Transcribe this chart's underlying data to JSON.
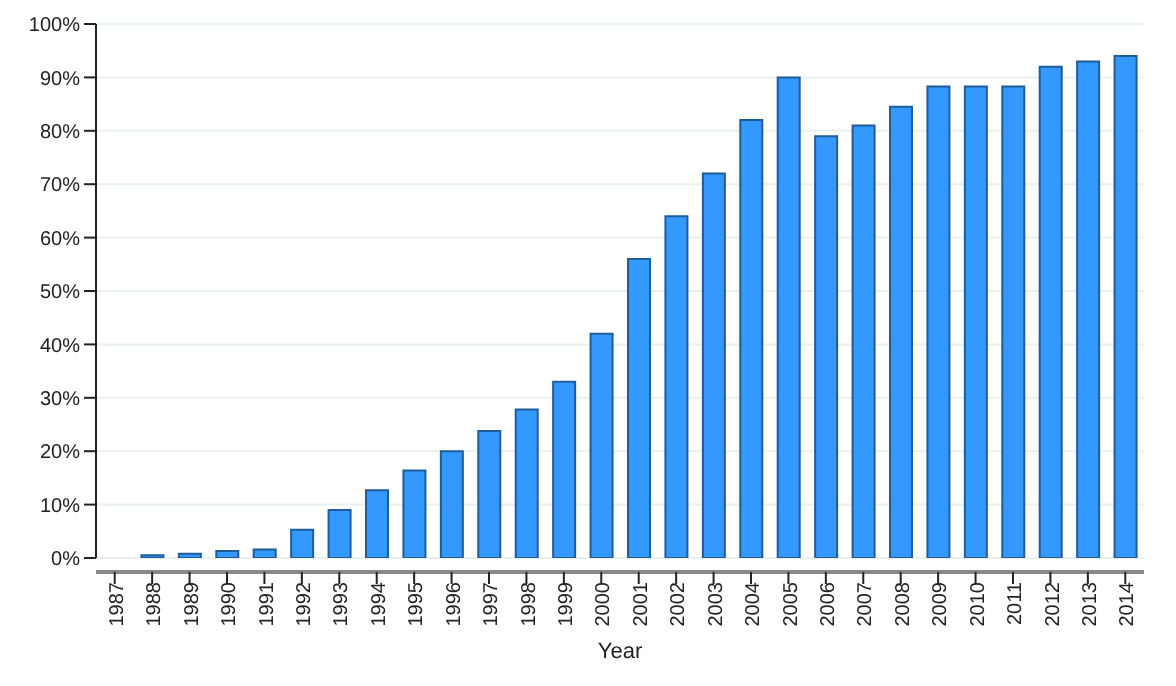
{
  "chart_data": {
    "type": "bar",
    "xlabel": "Year",
    "categories": [
      "1987",
      "1988",
      "1989",
      "1990",
      "1991",
      "1992",
      "1993",
      "1994",
      "1995",
      "1996",
      "1997",
      "1998",
      "1999",
      "2000",
      "2001",
      "2002",
      "2003",
      "2004",
      "2005",
      "2006",
      "2007",
      "2008",
      "2009",
      "2010",
      "2011",
      "2012",
      "2013",
      "2014"
    ],
    "values": [
      0,
      0.5,
      0.8,
      1.3,
      1.6,
      5.3,
      9,
      12.7,
      16.4,
      20,
      23.8,
      27.8,
      33,
      42,
      56,
      64,
      72,
      82,
      90,
      79,
      81,
      84.5,
      88.3,
      88.3,
      88.3,
      92,
      93,
      94
    ],
    "color": "#3399ff",
    "ylim": [
      0,
      100
    ],
    "yticks": [
      {
        "value": 0,
        "label": "0%"
      },
      {
        "value": 10,
        "label": "10%"
      },
      {
        "value": 20,
        "label": "20%"
      },
      {
        "value": 30,
        "label": "30%"
      },
      {
        "value": 40,
        "label": "40%"
      },
      {
        "value": 50,
        "label": "50%"
      },
      {
        "value": 60,
        "label": "60%"
      },
      {
        "value": 70,
        "label": "70%"
      },
      {
        "value": 80,
        "label": "80%"
      },
      {
        "value": 90,
        "label": "90%"
      },
      {
        "value": 100,
        "label": "100%"
      }
    ],
    "grid": "y"
  }
}
